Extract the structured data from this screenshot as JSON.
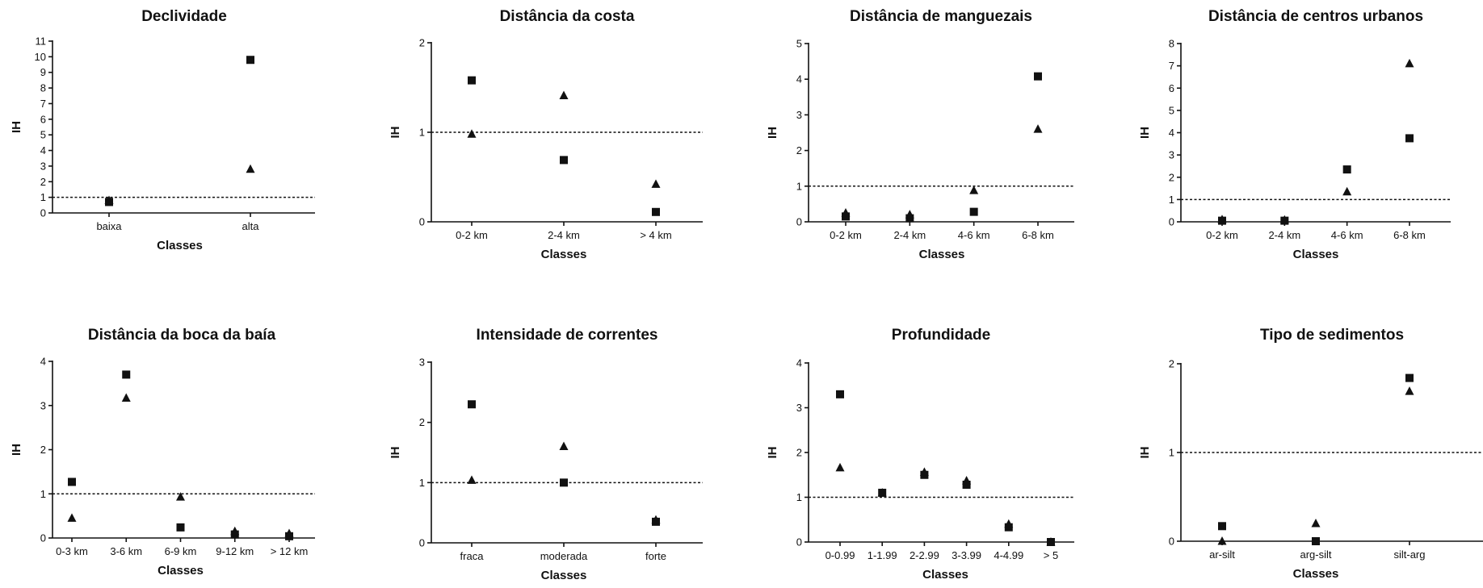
{
  "chart_data": [
    {
      "type": "scatter",
      "title": "Declividade",
      "xlabel": "Classes",
      "ylabel": "IH",
      "ylim": [
        0,
        11
      ],
      "yticks": [
        0,
        1,
        2,
        3,
        4,
        5,
        6,
        7,
        8,
        9,
        10,
        11
      ],
      "categories": [
        "baixa",
        "alta"
      ],
      "reference_line": 1,
      "series": [
        {
          "marker": "square",
          "values": [
            0.7,
            9.8
          ]
        },
        {
          "marker": "triangle",
          "values": [
            0.8,
            2.8
          ]
        }
      ]
    },
    {
      "type": "scatter",
      "title": "Distância da costa",
      "xlabel": "Classes",
      "ylabel": "IH",
      "ylim": [
        0,
        2
      ],
      "yticks": [
        0,
        1,
        2
      ],
      "categories": [
        "0-2 km",
        "2-4 km",
        "> 4 km"
      ],
      "reference_line": 1,
      "series": [
        {
          "marker": "square",
          "values": [
            1.58,
            0.69,
            0.11
          ]
        },
        {
          "marker": "triangle",
          "values": [
            0.98,
            1.41,
            0.42
          ]
        }
      ]
    },
    {
      "type": "scatter",
      "title": "Distância de manguezais",
      "xlabel": "Classes",
      "ylabel": "IH",
      "ylim": [
        0,
        5
      ],
      "yticks": [
        0,
        1,
        2,
        3,
        4,
        5
      ],
      "categories": [
        "0-2 km",
        "2-4 km",
        "4-6 km",
        "6-8 km"
      ],
      "reference_line": 1,
      "series": [
        {
          "marker": "square",
          "values": [
            0.15,
            0.1,
            0.28,
            4.08
          ]
        },
        {
          "marker": "triangle",
          "values": [
            0.25,
            0.2,
            0.88,
            2.6
          ]
        }
      ]
    },
    {
      "type": "scatter",
      "title": "Distância de centros urbanos",
      "xlabel": "Classes",
      "ylabel": "IH",
      "ylim": [
        0,
        8
      ],
      "yticks": [
        0,
        1,
        2,
        3,
        4,
        5,
        6,
        7,
        8
      ],
      "categories": [
        "0-2 km",
        "2-4 km",
        "4-6 km",
        "6-8 km"
      ],
      "reference_line": 1,
      "series": [
        {
          "marker": "square",
          "values": [
            0.05,
            0.05,
            2.35,
            3.75
          ]
        },
        {
          "marker": "triangle",
          "values": [
            0.1,
            0.08,
            1.35,
            7.1
          ]
        }
      ]
    },
    {
      "type": "scatter",
      "title": "Distância da boca da baía",
      "xlabel": "Classes",
      "ylabel": "IH",
      "ylim": [
        0,
        4
      ],
      "yticks": [
        0,
        1,
        2,
        3,
        4
      ],
      "categories": [
        "0-3 km",
        "3-6 km",
        "6-9 km",
        "9-12 km",
        "> 12 km"
      ],
      "reference_line": 1,
      "series": [
        {
          "marker": "square",
          "values": [
            1.27,
            3.7,
            0.24,
            0.08,
            0.04
          ]
        },
        {
          "marker": "triangle",
          "values": [
            0.45,
            3.17,
            0.93,
            0.15,
            0.1
          ]
        }
      ]
    },
    {
      "type": "scatter",
      "title": "Intensidade de correntes",
      "xlabel": "Classes",
      "ylabel": "IH",
      "ylim": [
        0,
        3
      ],
      "yticks": [
        0,
        1,
        2,
        3
      ],
      "categories": [
        "fraca",
        "moderada",
        "forte"
      ],
      "reference_line": 1,
      "series": [
        {
          "marker": "square",
          "values": [
            2.3,
            1.0,
            0.35
          ]
        },
        {
          "marker": "triangle",
          "values": [
            1.04,
            1.6,
            0.38
          ]
        }
      ]
    },
    {
      "type": "scatter",
      "title": "Profundidade",
      "xlabel": "Classes",
      "ylabel": "IH",
      "ylim": [
        0,
        4
      ],
      "yticks": [
        0,
        1,
        2,
        3,
        4
      ],
      "categories": [
        "0-0.99",
        "1-1.99",
        "2-2.99",
        "3-3.99",
        "4-4.99",
        "> 5"
      ],
      "reference_line": 1,
      "series": [
        {
          "marker": "square",
          "values": [
            3.3,
            1.1,
            1.5,
            1.28,
            0.33,
            0.0
          ]
        },
        {
          "marker": "triangle",
          "values": [
            1.66,
            1.1,
            1.56,
            1.37,
            0.4,
            0.0
          ]
        }
      ]
    },
    {
      "type": "scatter",
      "title": "Tipo de sedimentos",
      "xlabel": "Classes",
      "ylabel": "IH",
      "ylim": [
        0,
        2
      ],
      "yticks": [
        0,
        1,
        2
      ],
      "categories": [
        "ar-silt",
        "arg-silt",
        "silt-arg"
      ],
      "reference_line": 1,
      "series": [
        {
          "marker": "square",
          "values": [
            0.17,
            0.0,
            1.84
          ]
        },
        {
          "marker": "triangle",
          "values": [
            0.0,
            0.2,
            1.69
          ]
        }
      ]
    }
  ]
}
